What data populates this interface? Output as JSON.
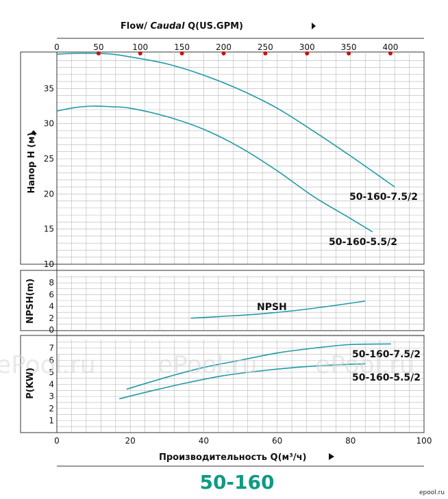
{
  "top_title": {
    "prefix": "Flow/ ",
    "italic": "Caudal",
    "suffix": " Q(US.GPM)"
  },
  "model_title": "50-160",
  "watermark": "ePool.ru",
  "corner_logo": "epool.ru",
  "colors": {
    "curve": "#1e9aa5",
    "grid": "#b4b4b4",
    "frame": "#333333",
    "gpm_dot": "#cc1010",
    "title": "#0f9a82"
  },
  "chart_data": [
    {
      "id": "head",
      "type": "line",
      "ylabel": "Напор H (м)",
      "xlim": [
        0,
        100
      ],
      "ylim": [
        10,
        40
      ],
      "yticks": [
        10,
        15,
        20,
        25,
        30,
        35
      ],
      "grid": true,
      "top_axis": {
        "label": "Flow/ Caudal Q(US.GPM)",
        "ticks": [
          0,
          50,
          100,
          150,
          200,
          250,
          300,
          350,
          400
        ],
        "unit_factor": 4.4029
      },
      "series": [
        {
          "name": "50-160-7.5/2",
          "x": [
            0,
            5,
            10,
            15,
            20,
            30,
            40,
            50,
            60,
            70,
            80,
            92
          ],
          "y": [
            39.9,
            40.0,
            40.0,
            39.9,
            39.5,
            38.5,
            36.9,
            34.8,
            32.2,
            28.9,
            25.4,
            21.0
          ]
        },
        {
          "name": "50-160-5.5/2",
          "x": [
            0,
            5,
            10,
            15,
            20,
            30,
            40,
            50,
            60,
            70,
            80,
            86
          ],
          "y": [
            31.8,
            32.3,
            32.5,
            32.4,
            32.2,
            31.0,
            29.2,
            26.6,
            23.3,
            19.6,
            16.5,
            14.6
          ]
        }
      ]
    },
    {
      "id": "npsh",
      "type": "line",
      "ylabel": "NPSH(m)",
      "xlim": [
        0,
        100
      ],
      "ylim": [
        0,
        10
      ],
      "yticks": [
        0,
        2,
        4,
        6,
        8
      ],
      "grid": true,
      "series": [
        {
          "name": "NPSH",
          "x": [
            36.5,
            45,
            55,
            65,
            75,
            84
          ],
          "y": [
            2.0,
            2.3,
            2.7,
            3.3,
            4.1,
            4.9
          ]
        }
      ]
    },
    {
      "id": "power",
      "type": "line",
      "ylabel": "P(KW)",
      "xlabel": "Производительность Q(м³/ч)",
      "xlim": [
        0,
        100
      ],
      "ylim": [
        0,
        8
      ],
      "yticks": [
        1,
        2,
        3,
        4,
        5,
        6,
        7
      ],
      "xticks": [
        0,
        20,
        40,
        60,
        80,
        100
      ],
      "grid": true,
      "series": [
        {
          "name": "50-160-7.5/2",
          "x": [
            19,
            30,
            40,
            50,
            60,
            70,
            80,
            91
          ],
          "y": [
            3.6,
            4.6,
            5.4,
            6.0,
            6.6,
            7.0,
            7.3,
            7.35
          ]
        },
        {
          "name": "50-160-5.5/2",
          "x": [
            17,
            25,
            35,
            45,
            55,
            65,
            75,
            84
          ],
          "y": [
            2.8,
            3.4,
            4.1,
            4.7,
            5.1,
            5.4,
            5.6,
            5.7
          ]
        }
      ]
    }
  ]
}
